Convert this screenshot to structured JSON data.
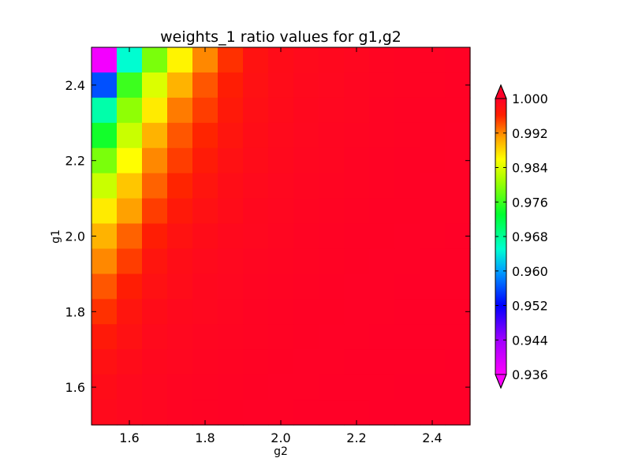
{
  "chart_data": {
    "type": "heatmap",
    "title": "weights_1 ratio values for g1,g2",
    "xlabel": "g2",
    "ylabel": "g1",
    "xlim": [
      1.5,
      2.5
    ],
    "ylim": [
      1.5,
      2.5
    ],
    "x_ticks": [
      "1.6",
      "1.8",
      "2.0",
      "2.2",
      "2.4"
    ],
    "x_tick_values": [
      1.6,
      1.8,
      2.0,
      2.2,
      2.4
    ],
    "y_ticks": [
      "1.6",
      "1.8",
      "2.0",
      "2.2",
      "2.4"
    ],
    "y_tick_values": [
      1.6,
      1.8,
      2.0,
      2.2,
      2.4
    ],
    "grid": false,
    "colorbar": {
      "ticks": [
        "1.000",
        "0.992",
        "0.984",
        "0.976",
        "0.968",
        "0.960",
        "0.952",
        "0.944",
        "0.936"
      ],
      "tick_values": [
        1.0,
        0.992,
        0.984,
        0.976,
        0.968,
        0.96,
        0.952,
        0.944,
        0.936
      ],
      "vmin": 0.936,
      "vmax": 1.0,
      "extend": "both",
      "colormap_stops": [
        "#ff00ff",
        "#0000ff",
        "#00ffff",
        "#00ff00",
        "#ffff00",
        "#ff8000",
        "#ff0000",
        "#ff0028"
      ]
    },
    "x_cells": 15,
    "y_cells": 15,
    "z_rows_top_to_bottom": [
      [
        0.937,
        0.965,
        0.979,
        0.9865,
        0.992,
        0.9955,
        0.9978,
        0.9985,
        0.9988,
        0.999,
        0.9992,
        0.9994,
        0.9995,
        0.9996,
        0.9997
      ],
      [
        0.956,
        0.976,
        0.984,
        0.99,
        0.994,
        0.9965,
        0.998,
        0.9986,
        0.9989,
        0.9991,
        0.9993,
        0.9994,
        0.9995,
        0.9996,
        0.9997
      ],
      [
        0.967,
        0.98,
        0.987,
        0.9925,
        0.995,
        0.997,
        0.9982,
        0.9987,
        0.999,
        0.9992,
        0.9993,
        0.9995,
        0.9996,
        0.9997,
        0.9997
      ],
      [
        0.974,
        0.983,
        0.99,
        0.994,
        0.996,
        0.9975,
        0.9984,
        0.9988,
        0.9991,
        0.9993,
        0.9994,
        0.9995,
        0.9996,
        0.9997,
        0.9998
      ],
      [
        0.979,
        0.986,
        0.992,
        0.995,
        0.9968,
        0.998,
        0.9986,
        0.9989,
        0.9992,
        0.9993,
        0.9995,
        0.9996,
        0.9997,
        0.9997,
        0.9998
      ],
      [
        0.983,
        0.989,
        0.9935,
        0.996,
        0.9975,
        0.9984,
        0.9988,
        0.9991,
        0.9993,
        0.9994,
        0.9995,
        0.9996,
        0.9997,
        0.9998,
        0.9998
      ],
      [
        0.987,
        0.991,
        0.995,
        0.997,
        0.998,
        0.9986,
        0.999,
        0.9992,
        0.9994,
        0.9995,
        0.9996,
        0.9997,
        0.9997,
        0.9998,
        0.9998
      ],
      [
        0.99,
        0.9935,
        0.9965,
        0.9978,
        0.9985,
        0.9989,
        0.9991,
        0.9993,
        0.9995,
        0.9996,
        0.9997,
        0.9997,
        0.9998,
        0.9998,
        0.9999
      ],
      [
        0.992,
        0.995,
        0.9975,
        0.9984,
        0.9988,
        0.9991,
        0.9993,
        0.9994,
        0.9995,
        0.9996,
        0.9997,
        0.9998,
        0.9998,
        0.9999,
        0.9999
      ],
      [
        0.994,
        0.9965,
        0.998,
        0.9986,
        0.999,
        0.9992,
        0.9994,
        0.9995,
        0.9996,
        0.9997,
        0.9998,
        0.9998,
        0.9999,
        0.9999,
        0.9999
      ],
      [
        0.9955,
        0.9975,
        0.9985,
        0.9989,
        0.9991,
        0.9993,
        0.9995,
        0.9996,
        0.9997,
        0.9997,
        0.9998,
        0.9998,
        0.9999,
        0.9999,
        0.9999
      ],
      [
        0.997,
        0.998,
        0.9988,
        0.9991,
        0.9993,
        0.9994,
        0.9995,
        0.9996,
        0.9997,
        0.9998,
        0.9998,
        0.9999,
        0.9999,
        0.9999,
        0.9999
      ],
      [
        0.998,
        0.9986,
        0.999,
        0.9992,
        0.9994,
        0.9995,
        0.9996,
        0.9997,
        0.9998,
        0.9998,
        0.9999,
        0.9999,
        0.9999,
        0.9999,
        1.0
      ],
      [
        0.9985,
        0.9989,
        0.9992,
        0.9994,
        0.9995,
        0.9996,
        0.9997,
        0.9998,
        0.9998,
        0.9999,
        0.9999,
        0.9999,
        1.0,
        1.0,
        1.0
      ],
      [
        0.9988,
        0.9991,
        0.9993,
        0.9995,
        0.9996,
        0.9997,
        0.9998,
        0.9998,
        0.9999,
        0.9999,
        0.9999,
        1.0,
        1.0,
        1.0,
        1.0
      ]
    ]
  }
}
